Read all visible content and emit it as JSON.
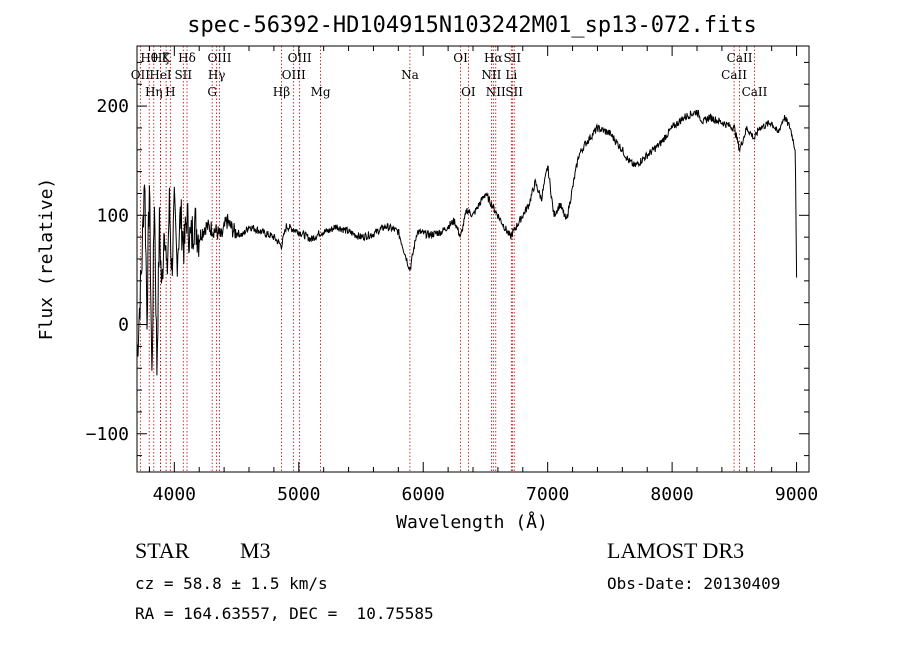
{
  "chart_data": {
    "type": "line",
    "title": "spec-56392-HD104915N103242M01_sp13-072.fits",
    "xlabel": "Wavelength (Å)",
    "ylabel": "Flux (relative)",
    "xlim": [
      3700,
      9100
    ],
    "ylim": [
      -135,
      255
    ],
    "xticks": [
      4000,
      5000,
      6000,
      7000,
      8000,
      9000
    ],
    "yticks": [
      -100,
      0,
      100,
      200
    ],
    "xtick_labels": [
      "4000",
      "5000",
      "6000",
      "7000",
      "8000",
      "9000"
    ],
    "ytick_labels": [
      "−100",
      "0",
      "100",
      "200"
    ],
    "series": [
      {
        "name": "flux",
        "x": [
          3700,
          3740,
          3760,
          3780,
          3800,
          3820,
          3840,
          3860,
          3880,
          3900,
          3920,
          3940,
          3960,
          3980,
          4000,
          4020,
          4050,
          4080,
          4100,
          4130,
          4160,
          4200,
          4250,
          4300,
          4340,
          4380,
          4420,
          4480,
          4550,
          4600,
          4700,
          4800,
          4860,
          4900,
          5000,
          5100,
          5170,
          5250,
          5300,
          5400,
          5500,
          5600,
          5700,
          5800,
          5893,
          5950,
          6050,
          6150,
          6250,
          6300,
          6350,
          6400,
          6450,
          6500,
          6550,
          6600,
          6650,
          6700,
          6750,
          6800,
          6850,
          6900,
          6950,
          7000,
          7050,
          7100,
          7150,
          7200,
          7250,
          7300,
          7400,
          7500,
          7600,
          7650,
          7700,
          7800,
          7900,
          8000,
          8100,
          8200,
          8250,
          8300,
          8400,
          8500,
          8542,
          8600,
          8662,
          8700,
          8800,
          8850,
          8900,
          8950,
          8990,
          9000
        ],
        "y": [
          -30,
          60,
          140,
          10,
          130,
          -50,
          120,
          -40,
          90,
          30,
          100,
          40,
          110,
          50,
          105,
          60,
          100,
          70,
          100,
          75,
          95,
          80,
          90,
          88,
          85,
          80,
          95,
          85,
          82,
          90,
          85,
          80,
          72,
          90,
          85,
          78,
          84,
          86,
          90,
          85,
          80,
          83,
          90,
          85,
          50,
          85,
          82,
          85,
          95,
          80,
          105,
          100,
          110,
          120,
          110,
          100,
          90,
          80,
          90,
          100,
          110,
          130,
          115,
          145,
          100,
          110,
          95,
          125,
          155,
          165,
          180,
          175,
          160,
          150,
          145,
          155,
          165,
          180,
          190,
          195,
          185,
          190,
          185,
          180,
          160,
          180,
          170,
          180,
          185,
          175,
          190,
          180,
          160,
          40
        ]
      }
    ],
    "line_markers": [
      {
        "name": "OII",
        "x": 3727,
        "row": 2
      },
      {
        "name": "Hθ",
        "x": 3798,
        "row": 1
      },
      {
        "name": "Hη",
        "x": 3835,
        "row": 3
      },
      {
        "name": "Hζ",
        "x": 3889,
        "row": 1
      },
      {
        "name": "HeI",
        "x": 3889,
        "row": 2
      },
      {
        "name": "K",
        "x": 3934,
        "row": 1
      },
      {
        "name": "H",
        "x": 3968,
        "row": 3
      },
      {
        "name": "SII",
        "x": 4072,
        "row": 2
      },
      {
        "name": "Hδ",
        "x": 4102,
        "row": 1
      },
      {
        "name": "G",
        "x": 4304,
        "row": 3
      },
      {
        "name": "OIII",
        "x": 4363,
        "row": 1
      },
      {
        "name": "Hγ",
        "x": 4340,
        "row": 2
      },
      {
        "name": "Hβ",
        "x": 4861,
        "row": 3
      },
      {
        "name": "OIII",
        "x": 4959,
        "row": 2
      },
      {
        "name": "OIII",
        "x": 5007,
        "row": 1
      },
      {
        "name": "Mg",
        "x": 5175,
        "row": 3
      },
      {
        "name": "Na",
        "x": 5893,
        "row": 2
      },
      {
        "name": "OI",
        "x": 6300,
        "row": 1
      },
      {
        "name": "OI",
        "x": 6363,
        "row": 3
      },
      {
        "name": "Hα",
        "x": 6563,
        "row": 1
      },
      {
        "name": "NII",
        "x": 6548,
        "row": 2
      },
      {
        "name": "NII",
        "x": 6583,
        "row": 3
      },
      {
        "name": "SII",
        "x": 6716,
        "row": 1
      },
      {
        "name": "Li",
        "x": 6708,
        "row": 2
      },
      {
        "name": "SII",
        "x": 6731,
        "row": 3
      },
      {
        "name": "CaII",
        "x": 8498,
        "row": 2
      },
      {
        "name": "CaII",
        "x": 8542,
        "row": 1
      },
      {
        "name": "CaII",
        "x": 8662,
        "row": 3
      }
    ]
  },
  "info": {
    "class_label": "STAR",
    "subclass": "M3",
    "survey": "LAMOST DR3",
    "cz": "cz = 58.8 ± 1.5 km/s",
    "obs_date": "Obs-Date: 20130409",
    "coords": "RA = 164.63557, DEC =  10.75585"
  },
  "colors": {
    "axis": "#000000",
    "spectrum": "#000000",
    "marker_line": "#c00000"
  }
}
